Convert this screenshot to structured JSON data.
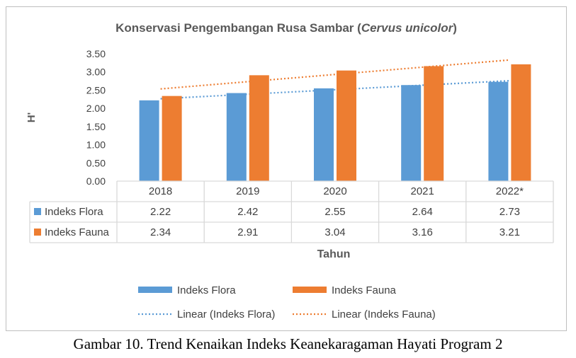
{
  "caption": "Gambar 10. Trend Kenaikan Indeks Keanekaragaman Hayati Program 2",
  "chart_data": {
    "type": "bar",
    "title_main": "Konservasi Pengembangan Rusa Sambar (",
    "title_italic": "Cervus unicolor",
    "title_end": ")",
    "xlabel": "Tahun",
    "ylabel": "H'",
    "ylim": [
      0,
      3.5
    ],
    "yticks": [
      "0.00",
      "0.50",
      "1.00",
      "1.50",
      "2.00",
      "2.50",
      "3.00",
      "3.50"
    ],
    "categories": [
      "2018",
      "2019",
      "2020",
      "2021",
      "2022*"
    ],
    "series": [
      {
        "name": "Indeks Flora",
        "values": [
          2.22,
          2.42,
          2.55,
          2.64,
          2.73
        ],
        "labels": [
          "2.22",
          "2.42",
          "2.55",
          "2.64",
          "2.73"
        ],
        "color": "#5b9bd5"
      },
      {
        "name": "Indeks Fauna",
        "values": [
          2.34,
          2.91,
          3.04,
          3.16,
          3.21
        ],
        "labels": [
          "2.34",
          "2.91",
          "3.04",
          "3.16",
          "3.21"
        ],
        "color": "#ed7d31"
      }
    ],
    "trendlines": [
      {
        "name": "Linear (Indeks Flora)",
        "color": "#5b9bd5",
        "style": "dotted"
      },
      {
        "name": "Linear (Indeks Fauna)",
        "color": "#ed7d31",
        "style": "dotted"
      }
    ],
    "data_table": true,
    "grid": false,
    "legend_position": "bottom"
  }
}
